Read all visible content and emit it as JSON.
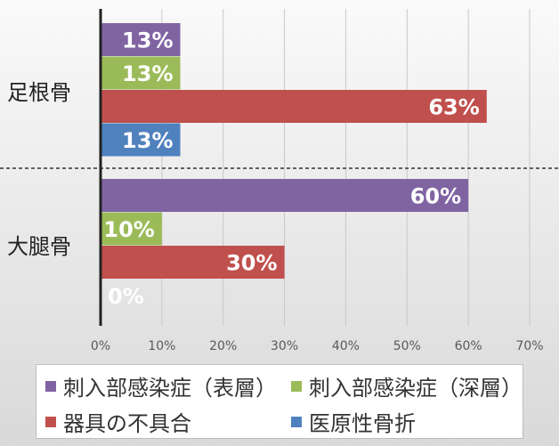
{
  "chart_data": {
    "type": "bar",
    "orientation": "horizontal",
    "categories": [
      "足根骨",
      "大腿骨"
    ],
    "series": [
      {
        "name": "刺入部感染症（表層）",
        "values": [
          13,
          60
        ],
        "color": "#8064a2"
      },
      {
        "name": "刺入部感染症（深層）",
        "values": [
          13,
          10
        ],
        "color": "#9bbb59"
      },
      {
        "name": "器具の不具合",
        "values": [
          63,
          30
        ],
        "color": "#c0504d"
      },
      {
        "name": "医原性骨折",
        "values": [
          13,
          0
        ],
        "color": "#4f81bd"
      }
    ],
    "data_labels": [
      [
        "13%",
        "60%"
      ],
      [
        "13%",
        "10%"
      ],
      [
        "63%",
        "30%"
      ],
      [
        "13%",
        "0%"
      ]
    ],
    "xlim": [
      0,
      70
    ],
    "xticks": [
      "0%",
      "10%",
      "20%",
      "30%",
      "40%",
      "50%",
      "60%",
      "70%"
    ],
    "grid": true,
    "legend_position": "bottom",
    "background": "#f2f2f2"
  }
}
